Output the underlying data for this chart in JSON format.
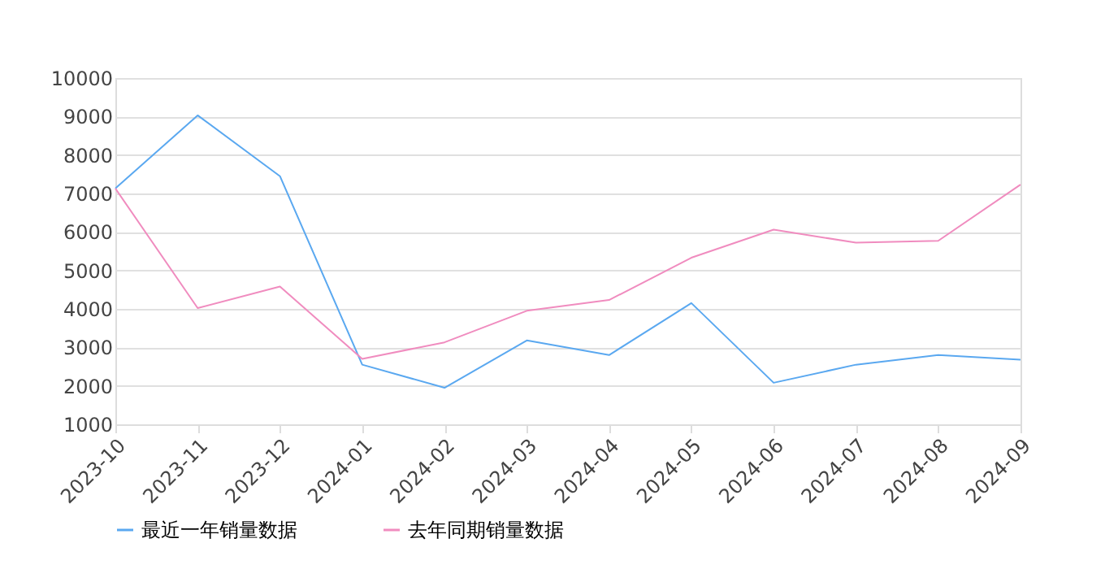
{
  "chart_data": {
    "type": "line",
    "categories": [
      "2023-10",
      "2023-11",
      "2023-12",
      "2024-01",
      "2024-02",
      "2024-03",
      "2024-04",
      "2024-05",
      "2024-06",
      "2024-07",
      "2024-08",
      "2024-09"
    ],
    "series": [
      {
        "name": "最近一年销量数据",
        "color": "#5aa8f0",
        "values": [
          7130,
          9030,
          7450,
          2550,
          1950,
          3180,
          2800,
          4150,
          2080,
          2550,
          2800,
          2680
        ]
      },
      {
        "name": "去年同期销量数据",
        "color": "#f08cbf",
        "values": [
          7130,
          4020,
          4580,
          2700,
          3130,
          3950,
          4230,
          5330,
          6060,
          5720,
          5770,
          7230
        ]
      }
    ],
    "ylim": [
      1000,
      10000
    ],
    "yticks": [
      1000,
      2000,
      3000,
      4000,
      5000,
      6000,
      7000,
      8000,
      9000,
      10000
    ],
    "grid": "y",
    "legend": "bottom",
    "marker": "none"
  }
}
